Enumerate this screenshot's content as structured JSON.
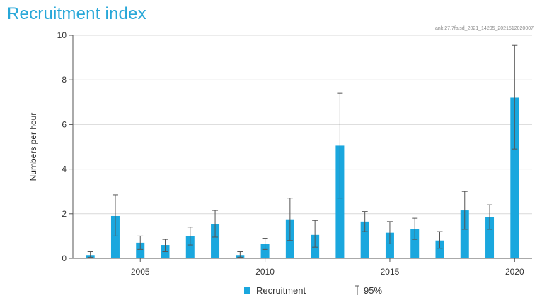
{
  "chart_data": {
    "type": "bar",
    "title": "Recruitment index",
    "source_note": "ank 27.7falsd_2021_14295_2021512020007",
    "ylabel": "Numbers per hour",
    "xlabel": "",
    "xlim": [
      2002.3,
      2020.7
    ],
    "ylim": [
      0,
      10
    ],
    "y_ticks": [
      0,
      2,
      4,
      6,
      8,
      10
    ],
    "x_ticks": [
      2005,
      2010,
      2015,
      2020
    ],
    "grid": true,
    "legend_position": "bottom-center",
    "bar_color": "#1aa7de",
    "error_color": "#555555",
    "series": [
      {
        "name": "Recruitment",
        "x": [
          2003,
          2004,
          2005,
          2006,
          2007,
          2008,
          2009,
          2010,
          2011,
          2012,
          2013,
          2014,
          2015,
          2016,
          2017,
          2018,
          2019,
          2020
        ],
        "values": [
          0.15,
          1.9,
          0.7,
          0.6,
          1.0,
          1.55,
          0.15,
          0.65,
          1.75,
          1.05,
          5.05,
          1.65,
          1.15,
          1.3,
          0.8,
          2.15,
          1.85,
          7.2
        ],
        "ci_low": [
          0.05,
          1.0,
          0.4,
          0.3,
          0.6,
          0.95,
          0.05,
          0.4,
          0.8,
          0.5,
          2.7,
          1.2,
          0.65,
          0.85,
          0.45,
          1.3,
          1.3,
          4.9
        ],
        "ci_high": [
          0.3,
          2.85,
          1.0,
          0.85,
          1.4,
          2.15,
          0.3,
          0.9,
          2.7,
          1.7,
          7.4,
          2.1,
          1.65,
          1.8,
          1.2,
          3.0,
          2.4,
          9.55
        ]
      }
    ],
    "legend": [
      {
        "label": "Recruitment",
        "kind": "bar"
      },
      {
        "label": "95%",
        "kind": "error"
      }
    ]
  }
}
